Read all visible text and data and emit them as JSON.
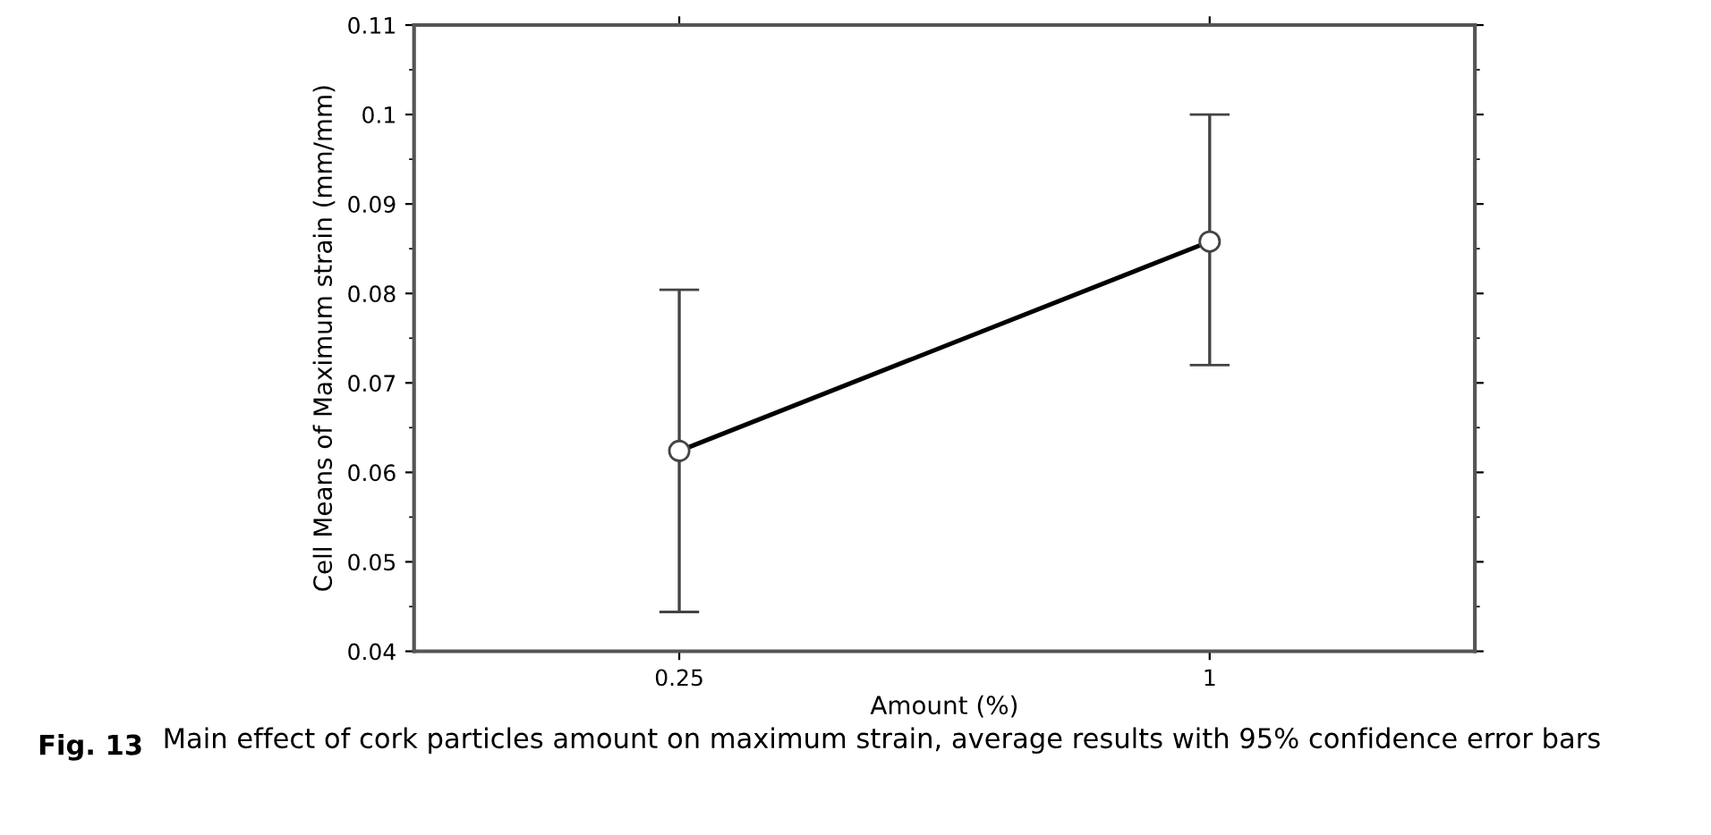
{
  "chart_data": {
    "type": "line",
    "xlabel": "Amount (%)",
    "ylabel": "Cell Means of Maximum strain (mm/mm)",
    "categories": [
      "0.25",
      "1"
    ],
    "series": [
      {
        "color": "#000000",
        "values": [
          0.0624,
          0.0858
        ],
        "errors": [
          [
            0.0444,
            0.0804
          ],
          [
            0.072,
            0.1
          ]
        ]
      }
    ],
    "ylim": [
      0.04,
      0.11
    ],
    "yticks": [
      0.04,
      0.05,
      0.06,
      0.07,
      0.08,
      0.09,
      0.1,
      0.11
    ],
    "marker": "circle",
    "line_style": "solid",
    "grid": false,
    "legend": false,
    "annotations": [
      "Fig. 13",
      "Main effect of cork particles amount on maximum strain, average results with 95% confidence error bars"
    ]
  }
}
